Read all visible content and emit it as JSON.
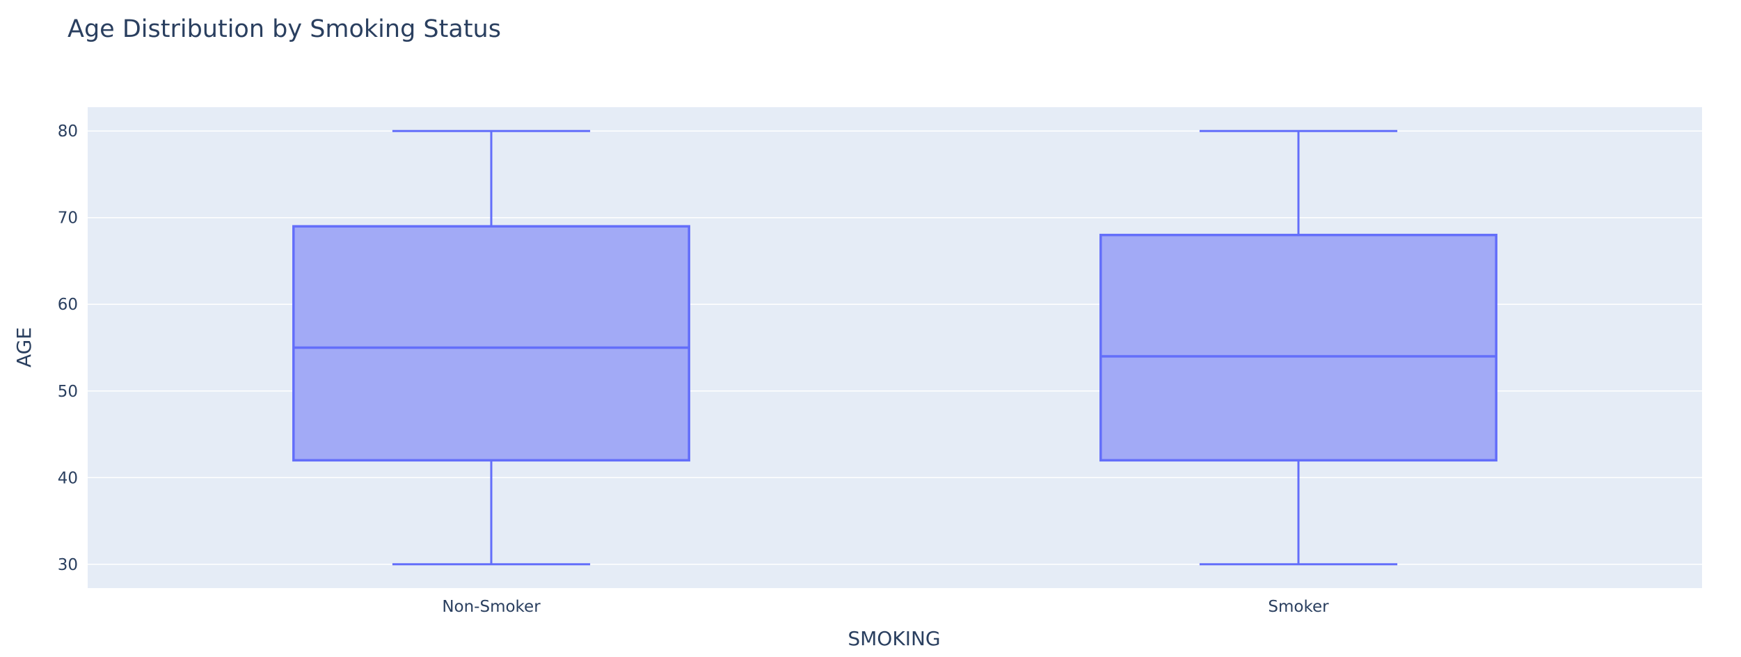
{
  "chart_data": {
    "type": "box",
    "title": "Age Distribution by Smoking Status",
    "xlabel": "SMOKING",
    "ylabel": "AGE",
    "categories": [
      "Non-Smoker",
      "Smoker"
    ],
    "boxes": [
      {
        "category": "Non-Smoker",
        "min": 30,
        "q1": 42,
        "median": 55,
        "q3": 69,
        "max": 80
      },
      {
        "category": "Smoker",
        "min": 30,
        "q1": 42,
        "median": 54,
        "q3": 68,
        "max": 80
      }
    ],
    "ylim": [
      27.25,
      82.75
    ],
    "yticks": [
      30,
      40,
      50,
      60,
      70,
      80
    ],
    "grid": true,
    "legend": "none"
  },
  "colors": {
    "box_line": "#636efa",
    "box_fill": "#a2aaf6",
    "plot_bg": "#e5ecf6",
    "grid": "#ffffff",
    "text": "#2a3f5f"
  }
}
